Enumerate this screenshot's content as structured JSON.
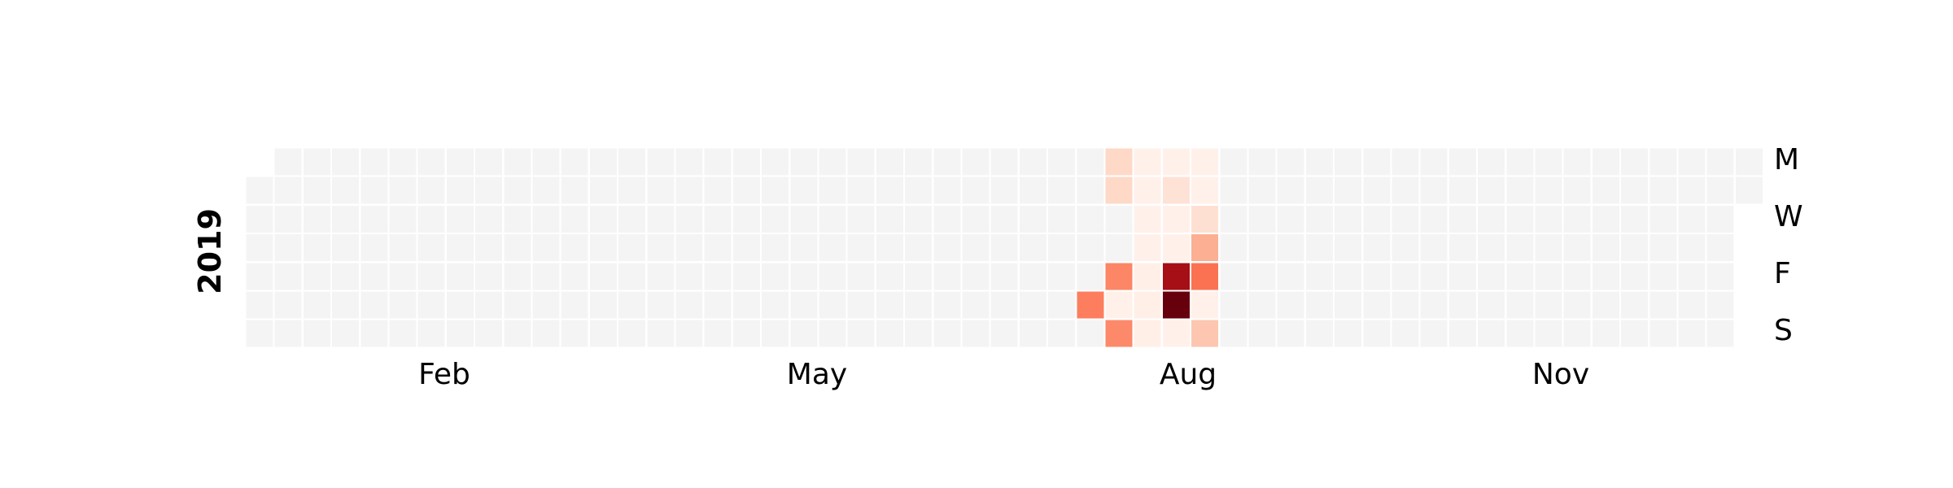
{
  "chart_data": {
    "type": "heatmap",
    "title": "",
    "year": "2019",
    "week_start": "Monday",
    "month_labels": [
      "Feb",
      "May",
      "Aug",
      "Nov"
    ],
    "day_labels": [
      "M",
      "W",
      "F",
      "S"
    ],
    "colors": {
      "empty": "#f4f4f4",
      "scale": [
        "#fff5f0",
        "#fee0d2",
        "#fcbba1",
        "#fc9272",
        "#fb6a4a",
        "#ef3b2c",
        "#cb181d",
        "#a50f15",
        "#67000d"
      ],
      "separator": "#ffffff"
    },
    "vmax": 8,
    "values": [
      {
        "date": "2019-07-27",
        "value": 3.5
      },
      {
        "date": "2019-07-29",
        "value": 1.2
      },
      {
        "date": "2019-07-30",
        "value": 1.2
      },
      {
        "date": "2019-08-02",
        "value": 3.3
      },
      {
        "date": "2019-08-03",
        "value": 0.2
      },
      {
        "date": "2019-08-04",
        "value": 3.2
      },
      {
        "date": "2019-08-05",
        "value": 0.2
      },
      {
        "date": "2019-08-06",
        "value": 0.2
      },
      {
        "date": "2019-08-07",
        "value": 0.2
      },
      {
        "date": "2019-08-08",
        "value": 0.2
      },
      {
        "date": "2019-08-09",
        "value": 0.3
      },
      {
        "date": "2019-08-10",
        "value": 0.3
      },
      {
        "date": "2019-08-11",
        "value": 0.3
      },
      {
        "date": "2019-08-12",
        "value": 0.2
      },
      {
        "date": "2019-08-13",
        "value": 0.9
      },
      {
        "date": "2019-08-14",
        "value": 0.2
      },
      {
        "date": "2019-08-15",
        "value": 0.2
      },
      {
        "date": "2019-08-16",
        "value": 7.0
      },
      {
        "date": "2019-08-17",
        "value": 8.0
      },
      {
        "date": "2019-08-18",
        "value": 0.2
      },
      {
        "date": "2019-08-19",
        "value": 0.2
      },
      {
        "date": "2019-08-20",
        "value": 0.2
      },
      {
        "date": "2019-08-21",
        "value": 1.0
      },
      {
        "date": "2019-08-22",
        "value": 2.3
      },
      {
        "date": "2019-08-23",
        "value": 3.8
      },
      {
        "date": "2019-08-24",
        "value": 0.2
      },
      {
        "date": "2019-08-25",
        "value": 1.7
      }
    ]
  }
}
